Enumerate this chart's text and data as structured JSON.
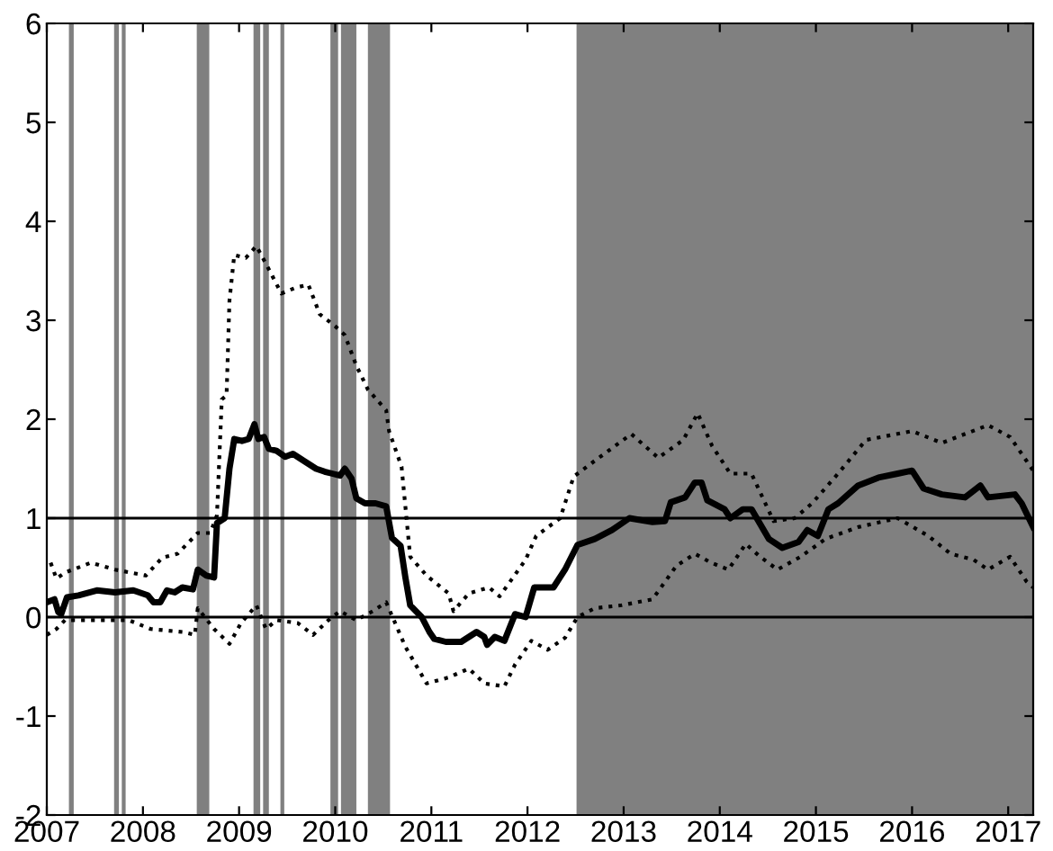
{
  "chart_data": {
    "type": "line",
    "xlim": [
      2007,
      2017.26
    ],
    "xticks": [
      2007,
      2008,
      2009,
      2010,
      2011,
      2012,
      2013,
      2014,
      2015,
      2016,
      2017
    ],
    "ylim": [
      -2,
      6
    ],
    "yticks": [
      -2,
      -1,
      0,
      1,
      2,
      3,
      4,
      5,
      6
    ],
    "grid": false,
    "series": [
      {
        "color": "#000000",
        "line_style": "solid",
        "x": [
          2007.0,
          2007.08,
          2007.12,
          2007.15,
          2007.21,
          2007.33,
          2007.52,
          2007.71,
          2007.9,
          2008.05,
          2008.11,
          2008.18,
          2008.25,
          2008.33,
          2008.41,
          2008.52,
          2008.57,
          2008.66,
          2008.74,
          2008.77,
          2008.85,
          2008.9,
          2008.95,
          2009.03,
          2009.1,
          2009.16,
          2009.2,
          2009.26,
          2009.31,
          2009.39,
          2009.48,
          2009.56,
          2009.64,
          2009.72,
          2009.8,
          2009.89,
          2009.97,
          2010.05,
          2010.1,
          2010.17,
          2010.22,
          2010.31,
          2010.42,
          2010.53,
          2010.59,
          2010.68,
          2010.73,
          2010.78,
          2010.9,
          2010.98,
          2011.03,
          2011.15,
          2011.31,
          2011.47,
          2011.55,
          2011.58,
          2011.66,
          2011.76,
          2011.87,
          2011.98,
          2012.07,
          2012.27,
          2012.39,
          2012.52,
          2012.7,
          2012.88,
          2013.06,
          2013.3,
          2013.43,
          2013.49,
          2013.64,
          2013.74,
          2013.81,
          2013.87,
          2014.05,
          2014.11,
          2014.24,
          2014.33,
          2014.42,
          2014.51,
          2014.65,
          2014.82,
          2014.91,
          2015.02,
          2015.13,
          2015.23,
          2015.44,
          2015.65,
          2015.85,
          2016.0,
          2016.12,
          2016.31,
          2016.55,
          2016.71,
          2016.79,
          2017.07,
          2017.14,
          2017.26
        ],
        "values": [
          0.15,
          0.18,
          0.05,
          0.03,
          0.2,
          0.22,
          0.27,
          0.25,
          0.27,
          0.22,
          0.15,
          0.15,
          0.27,
          0.25,
          0.3,
          0.28,
          0.48,
          0.42,
          0.4,
          0.95,
          1.0,
          1.5,
          1.8,
          1.78,
          1.8,
          1.95,
          1.8,
          1.82,
          1.7,
          1.68,
          1.62,
          1.65,
          1.6,
          1.55,
          1.5,
          1.47,
          1.45,
          1.43,
          1.5,
          1.4,
          1.2,
          1.15,
          1.15,
          1.12,
          0.8,
          0.72,
          0.4,
          0.12,
          0.0,
          -0.15,
          -0.22,
          -0.25,
          -0.25,
          -0.15,
          -0.2,
          -0.28,
          -0.2,
          -0.24,
          0.03,
          0.0,
          0.3,
          0.3,
          0.48,
          0.73,
          0.79,
          0.88,
          1.0,
          0.96,
          0.97,
          1.16,
          1.21,
          1.36,
          1.36,
          1.18,
          1.09,
          1.0,
          1.09,
          1.09,
          0.94,
          0.79,
          0.7,
          0.76,
          0.88,
          0.82,
          1.09,
          1.15,
          1.33,
          1.41,
          1.45,
          1.48,
          1.3,
          1.24,
          1.21,
          1.33,
          1.21,
          1.24,
          1.15,
          0.91
        ]
      },
      {
        "color": "#000000",
        "line_style": "dotted",
        "x": [
          2007.04,
          2007.1,
          2007.19,
          2007.46,
          2007.71,
          2008.03,
          2008.2,
          2008.36,
          2008.57,
          2008.7,
          2008.77,
          2008.82,
          2008.87,
          2008.9,
          2008.95,
          2009.07,
          2009.18,
          2009.28,
          2009.44,
          2009.59,
          2009.72,
          2009.84,
          2010.0,
          2010.1,
          2010.22,
          2010.34,
          2010.53,
          2010.56,
          2010.69,
          2010.78,
          2010.95,
          2011.18,
          2011.23,
          2011.39,
          2011.6,
          2011.71,
          2011.82,
          2011.98,
          2012.09,
          2012.34,
          2012.48,
          2012.7,
          2013.08,
          2013.36,
          2013.62,
          2013.77,
          2013.92,
          2014.11,
          2014.33,
          2014.56,
          2014.78,
          2014.96,
          2015.23,
          2015.52,
          2016.0,
          2016.31,
          2016.79,
          2017.02,
          2017.19,
          2017.26
        ],
        "values": [
          0.55,
          0.39,
          0.45,
          0.55,
          0.48,
          0.42,
          0.6,
          0.64,
          0.85,
          0.85,
          1.03,
          2.2,
          2.24,
          3.2,
          3.66,
          3.63,
          3.75,
          3.57,
          3.27,
          3.33,
          3.36,
          3.06,
          2.94,
          2.85,
          2.54,
          2.3,
          2.09,
          1.88,
          1.52,
          0.61,
          0.42,
          0.24,
          0.06,
          0.24,
          0.3,
          0.21,
          0.36,
          0.58,
          0.82,
          1.0,
          1.42,
          1.58,
          1.85,
          1.61,
          1.79,
          2.06,
          1.73,
          1.45,
          1.45,
          0.97,
          1.0,
          1.15,
          1.45,
          1.79,
          1.88,
          1.76,
          1.94,
          1.82,
          1.58,
          1.48
        ]
      },
      {
        "color": "#000000",
        "line_style": "dotted",
        "x": [
          2007.0,
          2007.1,
          2007.19,
          2007.52,
          2007.85,
          2008.08,
          2008.41,
          2008.54,
          2008.57,
          2008.74,
          2008.9,
          2009.02,
          2009.18,
          2009.28,
          2009.39,
          2009.61,
          2009.77,
          2009.93,
          2010.05,
          2010.22,
          2010.39,
          2010.53,
          2010.61,
          2010.73,
          2010.95,
          2011.18,
          2011.39,
          2011.55,
          2011.76,
          2011.87,
          2012.04,
          2012.21,
          2012.39,
          2012.52,
          2012.7,
          2012.98,
          2013.3,
          2013.55,
          2013.74,
          2013.91,
          2014.09,
          2014.27,
          2014.42,
          2014.6,
          2014.84,
          2015.1,
          2015.44,
          2015.85,
          2016.17,
          2016.4,
          2016.64,
          2016.79,
          2017.02,
          2017.19,
          2017.26
        ],
        "values": [
          -0.18,
          -0.12,
          -0.03,
          -0.03,
          -0.03,
          -0.12,
          -0.15,
          -0.18,
          0.09,
          -0.12,
          -0.27,
          -0.06,
          0.12,
          -0.12,
          -0.03,
          -0.06,
          -0.18,
          -0.03,
          0.06,
          -0.03,
          0.06,
          0.15,
          -0.03,
          -0.3,
          -0.67,
          -0.61,
          -0.52,
          -0.67,
          -0.7,
          -0.48,
          -0.24,
          -0.33,
          -0.21,
          0.0,
          0.09,
          0.12,
          0.18,
          0.52,
          0.64,
          0.55,
          0.48,
          0.74,
          0.61,
          0.48,
          0.61,
          0.79,
          0.91,
          1.0,
          0.82,
          0.64,
          0.58,
          0.48,
          0.61,
          0.36,
          0.3
        ]
      }
    ],
    "ref_lines": [
      {
        "axis": "y",
        "value": 0,
        "color": "#000000"
      },
      {
        "axis": "y",
        "value": 1,
        "color": "#000000"
      }
    ],
    "bands": [
      {
        "axis": "x",
        "from": 2007.23,
        "to": 2007.28,
        "color": "#808080"
      },
      {
        "axis": "x",
        "from": 2007.7,
        "to": 2007.75,
        "color": "#808080"
      },
      {
        "axis": "x",
        "from": 2007.78,
        "to": 2007.82,
        "color": "#808080"
      },
      {
        "axis": "x",
        "from": 2008.56,
        "to": 2008.69,
        "color": "#808080"
      },
      {
        "axis": "x",
        "from": 2009.15,
        "to": 2009.22,
        "color": "#808080"
      },
      {
        "axis": "x",
        "from": 2009.25,
        "to": 2009.31,
        "color": "#808080"
      },
      {
        "axis": "x",
        "from": 2009.43,
        "to": 2009.47,
        "color": "#808080"
      },
      {
        "axis": "x",
        "from": 2009.95,
        "to": 2010.03,
        "color": "#808080"
      },
      {
        "axis": "x",
        "from": 2010.06,
        "to": 2010.22,
        "color": "#808080"
      },
      {
        "axis": "x",
        "from": 2010.34,
        "to": 2010.57,
        "color": "#808080"
      },
      {
        "axis": "x",
        "from": 2012.51,
        "to": 2017.26,
        "color": "#808080"
      }
    ]
  }
}
